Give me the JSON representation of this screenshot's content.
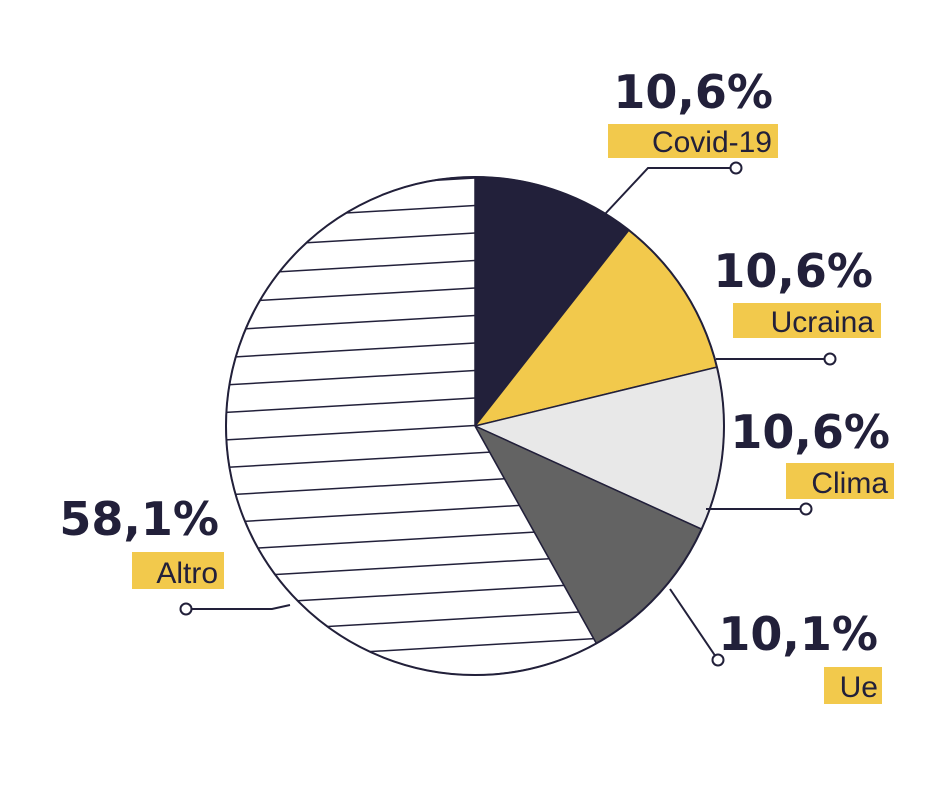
{
  "chart_data": {
    "type": "pie",
    "slices": [
      {
        "label": "Covid-19",
        "value": 10.6,
        "value_label": "10,6%",
        "color": "#22203a",
        "pattern": "solid"
      },
      {
        "label": "Ucraina",
        "value": 10.6,
        "value_label": "10,6%",
        "color": "#f2c94c",
        "pattern": "solid"
      },
      {
        "label": "Clima",
        "value": 10.6,
        "value_label": "10,6%",
        "color": "#e8e8e8",
        "pattern": "solid"
      },
      {
        "label": "Ue",
        "value": 10.1,
        "value_label": "10,1%",
        "color": "#636363",
        "pattern": "solid"
      },
      {
        "label": "Altro",
        "value": 58.1,
        "value_label": "58,1%",
        "color": "#ffffff",
        "pattern": "horizontal-hatch"
      }
    ],
    "start_angle": "12 o'clock",
    "direction": "clockwise",
    "label_highlight_color": "#f2c94c",
    "outline_color": "#22203a"
  }
}
